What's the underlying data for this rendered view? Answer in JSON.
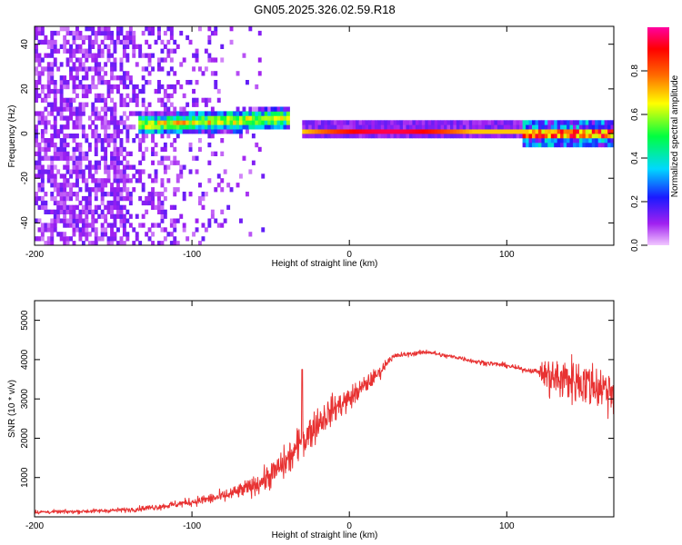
{
  "title": "GN05.2025.326.02.59.R18",
  "chart_data": [
    {
      "type": "heatmap",
      "xlabel": "Height of straight line (km)",
      "ylabel": "Frequency (Hz)",
      "xlim": [
        -200,
        168
      ],
      "ylim": [
        -50,
        48
      ],
      "xticks": [
        -200,
        -100,
        0,
        100
      ],
      "yticks": [
        -40,
        -20,
        0,
        20,
        40
      ],
      "colorbar": {
        "label": "Normalized spectral amplitude",
        "range": [
          0,
          1
        ],
        "ticks": [
          "0.0",
          "0.2",
          "0.4",
          "0.6",
          "0.8"
        ],
        "colormap": [
          "#f2c8ff",
          "#a020f0",
          "#1a1aff",
          "#00d8ff",
          "#00ff40",
          "#ffff00",
          "#ff6a00",
          "#ff0000",
          "#ff00a0"
        ]
      },
      "features": [
        {
          "label": "noise field",
          "x_range": [
            -200,
            -55
          ],
          "freq_range": [
            -50,
            48
          ]
        },
        {
          "label": "signal band",
          "x_range": [
            -135,
            -40
          ],
          "center_hz": 3,
          "width_hz": 10
        },
        {
          "label": "carrier line",
          "x_range": [
            -30,
            110
          ],
          "center_hz": 0.5,
          "peak_amplitude": 0.95
        },
        {
          "label": "modulated segment",
          "x_range": [
            110,
            168
          ],
          "center_hz": -1,
          "width_hz": 12
        }
      ]
    },
    {
      "type": "line",
      "xlabel": "Height of straight line (km)",
      "ylabel": "SNR (10 * v/v)",
      "xlim": [
        -200,
        168
      ],
      "ylim": [
        0,
        5500
      ],
      "xticks": [
        -200,
        -100,
        0,
        100
      ],
      "yticks": [
        1000,
        2000,
        3000,
        4000,
        5000
      ],
      "color": "#e83232",
      "series": [
        {
          "name": "SNR",
          "x": [
            -200,
            -180,
            -160,
            -140,
            -120,
            -100,
            -80,
            -70,
            -60,
            -50,
            -40,
            -30,
            -20,
            -10,
            0,
            10,
            20,
            25,
            30,
            40,
            50,
            60,
            70,
            80,
            90,
            100,
            110,
            120,
            125,
            130,
            140,
            150,
            160,
            168
          ],
          "y": [
            120,
            130,
            150,
            180,
            260,
            380,
            520,
            650,
            800,
            1050,
            1400,
            1900,
            2400,
            2750,
            3000,
            3350,
            3700,
            4000,
            4100,
            4150,
            4200,
            4100,
            4050,
            3950,
            3900,
            3850,
            3750,
            3700,
            3600,
            3500,
            3500,
            3400,
            3300,
            3200
          ],
          "noise": [
            80,
            80,
            90,
            100,
            130,
            180,
            260,
            320,
            400,
            550,
            700,
            800,
            700,
            600,
            500,
            400,
            250,
            150,
            120,
            100,
            100,
            100,
            100,
            100,
            100,
            100,
            100,
            100,
            800,
            1000,
            1000,
            1000,
            1000,
            1000
          ]
        }
      ],
      "annotations": [
        {
          "x": -30,
          "y": 3750,
          "label": "spike"
        }
      ]
    }
  ]
}
